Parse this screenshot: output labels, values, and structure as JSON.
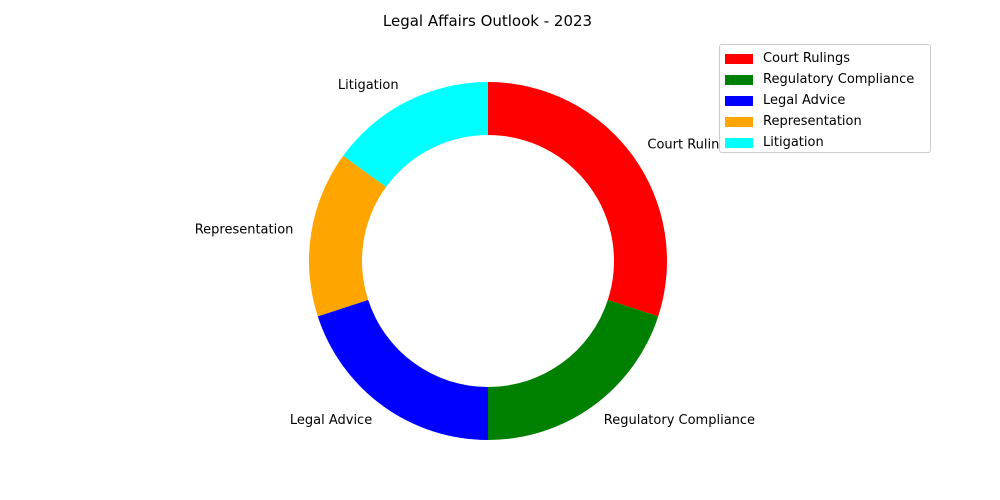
{
  "chart_data": {
    "type": "pie",
    "title": "Legal Affairs Outlook - 2023",
    "categories": [
      "Court Rulings",
      "Regulatory Compliance",
      "Legal Advice",
      "Representation",
      "Litigation"
    ],
    "values": [
      30,
      20,
      20,
      15,
      15
    ],
    "colors": [
      "#ff0000",
      "#008000",
      "#0000ff",
      "#ffa500",
      "#00ffff"
    ],
    "legend_placement": "top-right",
    "donut": true
  }
}
